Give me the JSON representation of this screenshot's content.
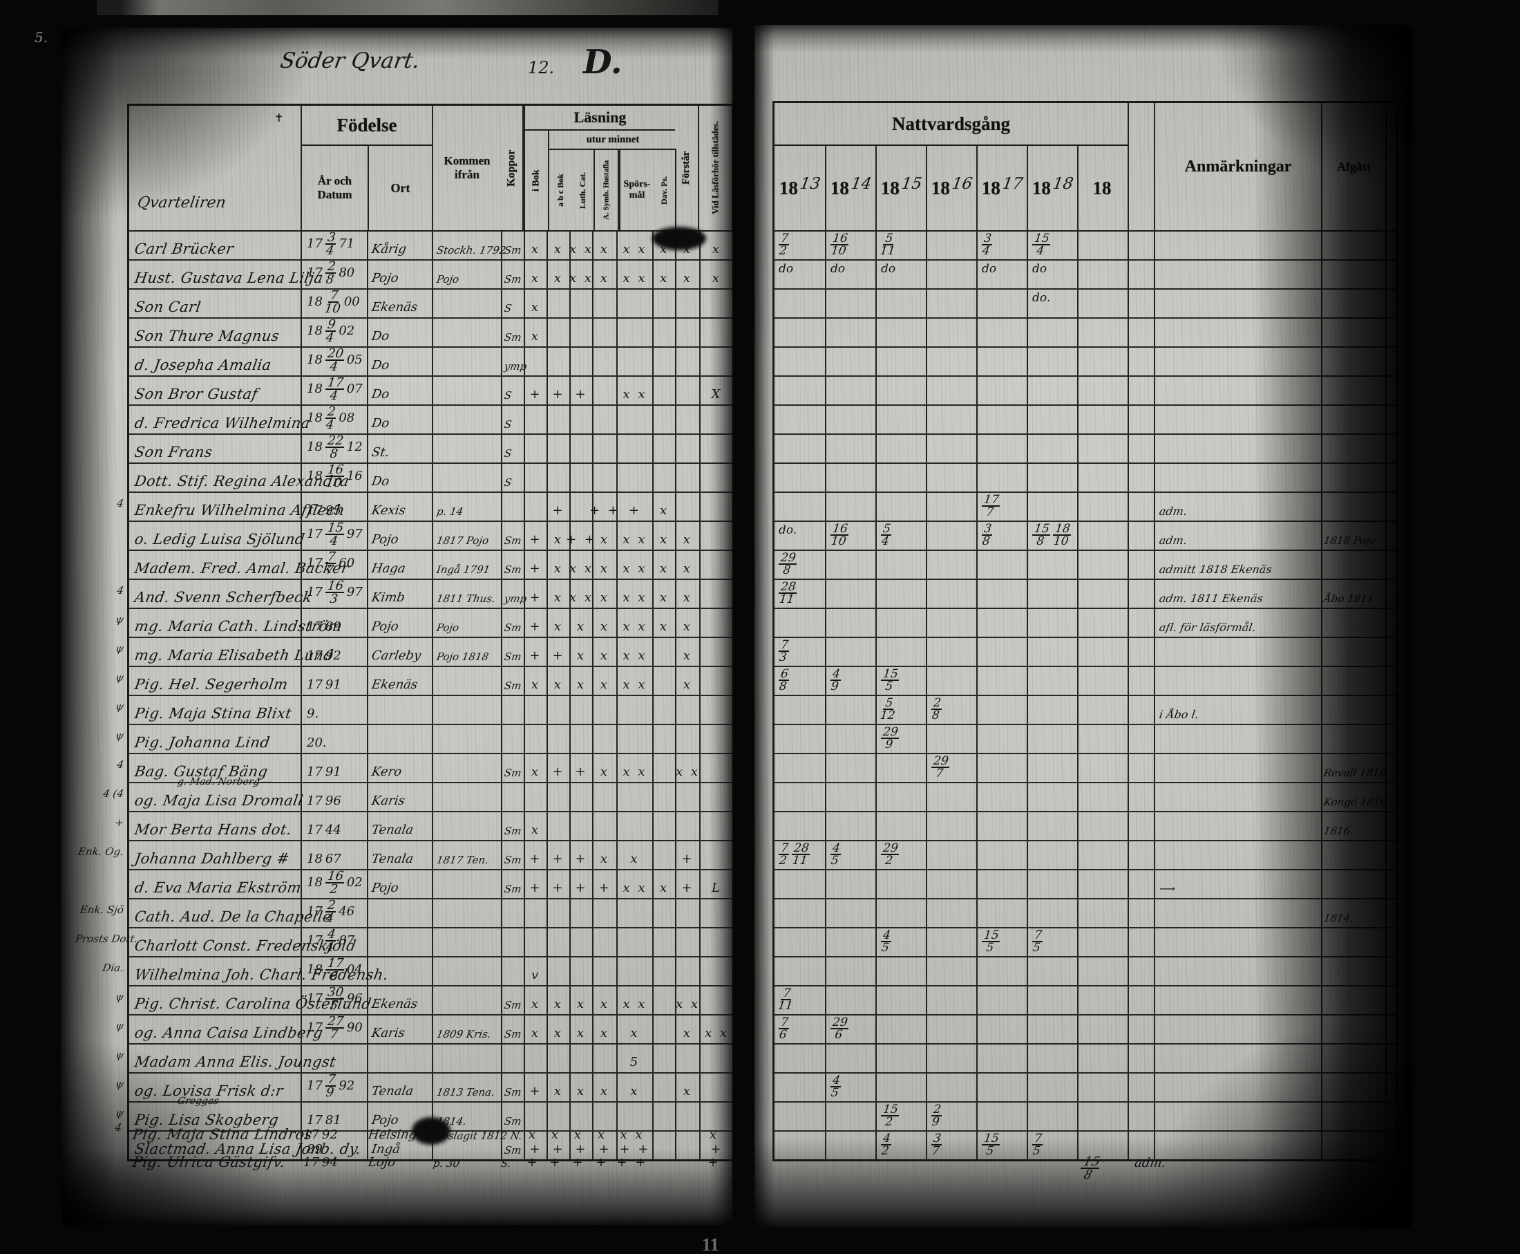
{
  "film": {
    "top_left_mark": "5.",
    "bottom_center_mark": "11"
  },
  "left_page": {
    "title_script": "Söder Qvart.",
    "title_number": "12.",
    "title_letter": "D.",
    "header_script": "Qvarteliren",
    "header_cross": "✝",
    "header": {
      "fodelse": "Födelse",
      "ar_och_datum": "År och Datum",
      "ort": "Ort",
      "kommen": "Kommen ifrån",
      "koppor": "Koppor",
      "lasning": "Läsning",
      "utur_minnet": "utur minnet",
      "i_bok": "i Bok",
      "abc_bok": "a b c Bok",
      "luth_cat": "Luth. Cat.",
      "a_symb": "A. Symb. Hustafla",
      "sporsmal": "Spörs- mål",
      "dav_ps": "Dav. Ps.",
      "forstar": "Förstår",
      "vid_lasforhor": "Vid Läsförhör tillstädes."
    },
    "rows": [
      {
        "margin": "",
        "name": "Carl Brücker",
        "name2": "",
        "born": "17 3/4 71",
        "ort": "Kårig",
        "kommen": "Stockh. 1792",
        "koppor": "Sm",
        "marks": [
          "x",
          "x",
          "x x",
          "x",
          "x x",
          "x",
          "x",
          "x"
        ]
      },
      {
        "margin": "",
        "name": "Hust. Gustava Lena Lilja",
        "name2": "",
        "born": "17 2/8 80",
        "ort": "Pojo",
        "kommen": "Pojo",
        "koppor": "Sm",
        "marks": [
          "x",
          "x",
          "x x",
          "x",
          "x x",
          "x",
          "x",
          "x"
        ]
      },
      {
        "margin": "",
        "name": "Son Carl",
        "name2": "",
        "born": "18 7/10 00",
        "ort": "Ekenäs",
        "kommen": "",
        "koppor": "S",
        "marks": [
          "x",
          "",
          "",
          "",
          "",
          "",
          "",
          ""
        ]
      },
      {
        "margin": "",
        "name": "Son Thure Magnus",
        "name2": "",
        "born": "18 9/4 02",
        "ort": "Do",
        "kommen": "",
        "koppor": "Sm",
        "marks": [
          "x",
          "",
          "",
          "",
          "",
          "",
          "",
          ""
        ]
      },
      {
        "margin": "",
        "name": "d. Josepha Amalia",
        "name2": "",
        "born": "18 20/4 05",
        "ort": "Do",
        "kommen": "",
        "koppor": "ymp",
        "marks": [
          "",
          "",
          "",
          "",
          "",
          "",
          "",
          ""
        ]
      },
      {
        "margin": "",
        "name": "Son Bror Gustaf",
        "name2": "",
        "born": "18 17/4 07",
        "ort": "Do",
        "kommen": "",
        "koppor": "S",
        "marks": [
          "+",
          "+",
          "+",
          "",
          "x x",
          "",
          "",
          "X"
        ]
      },
      {
        "margin": "",
        "name": "d. Fredrica Wilhelmina",
        "name2": "",
        "born": "18 2/4 08",
        "ort": "Do",
        "kommen": "",
        "koppor": "S",
        "marks": [
          "",
          "",
          "",
          "",
          "",
          "",
          "",
          ""
        ]
      },
      {
        "margin": "",
        "name": "Son Frans",
        "name2": "",
        "born": "18 22/8 12",
        "ort": "St.",
        "kommen": "",
        "koppor": "S",
        "marks": [
          "",
          "",
          "",
          "",
          "",
          "",
          "",
          ""
        ]
      },
      {
        "margin": "",
        "name": "Dott. Stif. Regina Alexandra",
        "name2": "",
        "born": "18 16/10 16",
        "ort": "Do",
        "kommen": "",
        "koppor": "S",
        "marks": [
          "",
          "",
          "",
          "",
          "",
          "",
          "",
          ""
        ]
      },
      {
        "margin": "4",
        "name": "Enkefru Wilhelmina Afflech",
        "name2": "",
        "born": "17 95",
        "ort": "Kexis",
        "kommen": "p. 14",
        "koppor": "",
        "marks": [
          "",
          "+",
          "",
          "+ +",
          "+",
          "x",
          "",
          ""
        ]
      },
      {
        "margin": "",
        "name": "o. Ledig Luisa Sjölund",
        "name2": "",
        "born": "17 15/4 97",
        "ort": "Pojo",
        "kommen": "1817 Pojo",
        "koppor": "Sm",
        "marks": [
          "+",
          "x",
          "+ +",
          "x",
          "x x",
          "x",
          "x",
          ""
        ]
      },
      {
        "margin": "",
        "name": "Madem. Fred. Amal. Backer",
        "name2": "",
        "born": "17 7/7 60",
        "ort": "Haga",
        "kommen": "Ingå 1791",
        "koppor": "Sm",
        "marks": [
          "+",
          "x",
          "x x",
          "x",
          "x x",
          "x",
          "x",
          ""
        ]
      },
      {
        "margin": "4",
        "name": "And. Svenn Scherfbeck",
        "name2": "",
        "born": "17 16/3 97",
        "ort": "Kimb",
        "kommen": "1811 Thus.",
        "koppor": "ymp",
        "marks": [
          "+",
          "x",
          "x x",
          "x",
          "x x",
          "x",
          "x",
          ""
        ]
      },
      {
        "margin": "ψ",
        "name": "mg. Maria Cath. Lindström",
        "name2": "",
        "born": "17 89",
        "ort": "Pojo",
        "kommen": "Pojo",
        "koppor": "Sm",
        "marks": [
          "+",
          "x",
          "x",
          "x",
          "x x",
          "x",
          "x",
          ""
        ]
      },
      {
        "margin": "ψ",
        "name": "mg. Maria Elisabeth Lund",
        "name2": "",
        "born": "17 92",
        "ort": "Carleby",
        "kommen": "Pojo 1818",
        "koppor": "Sm",
        "marks": [
          "+",
          "+",
          "x",
          "x",
          "x x",
          "",
          "x",
          ""
        ]
      },
      {
        "margin": "ψ",
        "name": "Pig. Hel. Segerholm",
        "name2": "",
        "born": "17 91",
        "ort": "Ekenäs",
        "kommen": "",
        "koppor": "Sm",
        "marks": [
          "x",
          "x",
          "x",
          "x",
          "x x",
          "",
          "x",
          ""
        ]
      },
      {
        "margin": "ψ",
        "name": "Pig. Maja Stina Blixt",
        "name2": "",
        "born": "9.",
        "ort": "",
        "kommen": "",
        "koppor": "",
        "marks": [
          "",
          "",
          "",
          "",
          "",
          "",
          "",
          ""
        ]
      },
      {
        "margin": "ψ",
        "name": "Pig. Johanna Lind",
        "name2": "",
        "born": "20.",
        "ort": "",
        "kommen": "",
        "koppor": "",
        "marks": [
          "",
          "",
          "",
          "",
          "",
          "",
          "",
          ""
        ]
      },
      {
        "margin": "4",
        "name": "Bag. Gustaf Bäng",
        "name2": "",
        "born": "17 91",
        "ort": "Kero",
        "kommen": "",
        "koppor": "Sm",
        "marks": [
          "x",
          "+",
          "+",
          "x",
          "x x",
          "",
          "x x",
          ""
        ]
      },
      {
        "margin": "4 (4",
        "name": "og. Maja Lisa Dromall",
        "name2": "g. Mad. Norberg —",
        "born": "17 96",
        "ort": "Karis",
        "kommen": "",
        "koppor": "",
        "marks": [
          "",
          "",
          "",
          "",
          "",
          "",
          "",
          ""
        ]
      },
      {
        "margin": "+",
        "name": "Mor Berta Hans dot.",
        "name2": "",
        "born": "17 44",
        "ort": "Tenala",
        "kommen": "",
        "koppor": "Sm",
        "marks": [
          "x",
          "",
          "",
          "",
          "",
          "",
          "",
          ""
        ]
      },
      {
        "margin": "Enk. Og.",
        "name": "Johanna Dahlberg #",
        "name2": "",
        "born": "18 67",
        "ort": "Tenala",
        "kommen": "1817 Ten.",
        "koppor": "Sm",
        "marks": [
          "+",
          "+",
          "+",
          "x",
          "x",
          "",
          "+",
          ""
        ]
      },
      {
        "margin": "",
        "name": "d. Eva Maria Ekström",
        "name2": "",
        "born": "18 16/2 02",
        "ort": "Pojo",
        "kommen": "",
        "koppor": "Sm",
        "marks": [
          "+",
          "+",
          "+",
          "+",
          "x x",
          "x",
          "+",
          "L"
        ]
      },
      {
        "margin": "Enk. Sjö",
        "name": "Cath. Aud. De la Chapelle",
        "name2": "",
        "born": "17 2/4 46",
        "ort": "",
        "kommen": "",
        "koppor": "",
        "marks": [
          "",
          "",
          "",
          "",
          "",
          "",
          "",
          ""
        ]
      },
      {
        "margin": "Prosts Dott.",
        "name": "Charlott Const. Fredenskjöld",
        "name2": "",
        "born": "17 4/4 87",
        "ort": "",
        "kommen": "",
        "koppor": "",
        "marks": [
          "",
          "",
          "",
          "",
          "",
          "",
          "",
          ""
        ]
      },
      {
        "margin": "Dia.",
        "name": "Wilhelmina Joh. Charl. Fredensh.",
        "name2": "",
        "born": "18 17/6 04",
        "ort": "",
        "kommen": "",
        "koppor": "",
        "marks": [
          "v",
          "",
          "",
          "",
          "",
          "",
          "",
          ""
        ]
      },
      {
        "margin": "ψ",
        "name": "Pig. Christ. Carolina Österlund",
        "name2": "",
        "born": "17 30/5 96",
        "ort": "Ekenäs",
        "kommen": "",
        "koppor": "Sm",
        "marks": [
          "x",
          "x",
          "x",
          "x",
          "x x",
          "",
          "x x",
          ""
        ]
      },
      {
        "margin": "ψ",
        "name": "og. Anna Caisa Lindberg",
        "name2": "",
        "born": "17 27/7 90",
        "ort": "Karis",
        "kommen": "1809 Kris.",
        "koppor": "Sm",
        "marks": [
          "x",
          "x",
          "x",
          "x",
          "x",
          "",
          "x",
          "x x"
        ]
      },
      {
        "margin": "ψ",
        "name": "Madam Anna Elis. Joungst",
        "name2": "",
        "born": "",
        "ort": "",
        "kommen": "",
        "koppor": "",
        "marks": [
          "",
          "",
          "",
          "",
          "5",
          "",
          "",
          ""
        ]
      },
      {
        "margin": "ψ",
        "name": "og. Lovisa Frisk d:r",
        "name2": "",
        "born": "17 7/9 92",
        "ort": "Tenala",
        "kommen": "1813 Tena.",
        "koppor": "Sm",
        "marks": [
          "+",
          "x",
          "x",
          "x",
          "x",
          "",
          "x",
          ""
        ]
      },
      {
        "margin": "ψ",
        "name": "Pig. Lisa Skogberg",
        "name2": "Greggas",
        "born": "17 81",
        "ort": "Pojo",
        "kommen": "1814.",
        "koppor": "Sm",
        "marks": [
          "",
          "",
          "",
          "",
          "",
          "",
          "",
          ""
        ]
      },
      {
        "margin": "",
        "name": "Slactmad. Anna Lisa Jonb. dy.",
        "name2": "",
        "born": "89",
        "ort": "Ingå",
        "kommen": "",
        "koppor": "Sm",
        "marks": [
          "+",
          "+",
          "+",
          "+",
          "+ +",
          "",
          "",
          "+"
        ]
      }
    ],
    "below_rows": [
      {
        "margin": "4",
        "name": "Pig. Maja Stina Lindros",
        "name2": "",
        "born": "17 92",
        "ort": "Helsing",
        "kommen": "Hoslagit 1812 N.",
        "koppor": "",
        "marks": [
          "x",
          "x",
          "x",
          "x",
          "x x",
          "",
          "",
          "x"
        ]
      },
      {
        "margin": "",
        "name": "Pig. Ulrica Gästgifv.",
        "name2": "",
        "born": "17 94",
        "ort": "Lojo",
        "kommen": "p. 30",
        "koppor": "S.",
        "marks": [
          "+",
          "+",
          "+",
          "+",
          "+ +",
          "",
          "",
          "+"
        ]
      }
    ]
  },
  "right_page": {
    "header": {
      "nattvardsgang": "Nattvardsgång",
      "year_prefix": "18",
      "years": [
        "13",
        "14",
        "15",
        "16",
        "17",
        "18",
        ""
      ],
      "anmarkningar": "Anmärkningar",
      "afgatt": "Afgått"
    },
    "rows": [
      {
        "cells": [
          "7/2",
          "16/10",
          "5/11",
          "",
          "3/4",
          "15/4",
          ""
        ],
        "anm": "",
        "afgatt": ""
      },
      {
        "cells": [
          "do",
          "do",
          "do",
          "",
          "do",
          "do",
          ""
        ],
        "anm": "",
        "afgatt": ""
      },
      {
        "cells": [
          "",
          "",
          "",
          "",
          "",
          "do.",
          ""
        ],
        "anm": "",
        "afgatt": ""
      },
      {
        "cells": [
          "",
          "",
          "",
          "",
          "",
          "",
          ""
        ],
        "anm": "",
        "afgatt": ""
      },
      {
        "cells": [
          "",
          "",
          "",
          "",
          "",
          "",
          ""
        ],
        "anm": "",
        "afgatt": ""
      },
      {
        "cells": [
          "",
          "",
          "",
          "",
          "",
          "",
          ""
        ],
        "anm": "",
        "afgatt": ""
      },
      {
        "cells": [
          "",
          "",
          "",
          "",
          "",
          "",
          ""
        ],
        "anm": "",
        "afgatt": ""
      },
      {
        "cells": [
          "",
          "",
          "",
          "",
          "",
          "",
          ""
        ],
        "anm": "",
        "afgatt": ""
      },
      {
        "cells": [
          "",
          "",
          "",
          "",
          "",
          "",
          ""
        ],
        "anm": "",
        "afgatt": ""
      },
      {
        "cells": [
          "",
          "",
          "",
          "",
          "17/7",
          "",
          ""
        ],
        "anm": "adm.",
        "afgatt": ""
      },
      {
        "cells": [
          "do.",
          "16/10",
          "5/4",
          "",
          "3/8",
          "15/8 18/10",
          ""
        ],
        "anm": "adm.",
        "afgatt": "1818 Pojo"
      },
      {
        "cells": [
          "29/8",
          "",
          "",
          "",
          "",
          "",
          ""
        ],
        "anm": "admitt 1818 Ekenäs",
        "afgatt": ""
      },
      {
        "cells": [
          "28/11",
          "",
          "",
          "",
          "",
          "",
          ""
        ],
        "anm": "adm. 1811 Ekenäs",
        "afgatt": "Åbo 1811"
      },
      {
        "cells": [
          "",
          "",
          "",
          "",
          "",
          "",
          ""
        ],
        "anm": "afl. för läsförmål.",
        "afgatt": ""
      },
      {
        "cells": [
          "7/3",
          "",
          "",
          "",
          "",
          "",
          ""
        ],
        "anm": "",
        "afgatt": ""
      },
      {
        "cells": [
          "6/8",
          "4/9",
          "15/5",
          "",
          "",
          "",
          ""
        ],
        "anm": "",
        "afgatt": ""
      },
      {
        "cells": [
          "",
          "",
          "5/12",
          "2/8",
          "",
          "",
          ""
        ],
        "anm": "i Åbo l.",
        "afgatt": ""
      },
      {
        "cells": [
          "",
          "",
          "29/9",
          "",
          "",
          "",
          ""
        ],
        "anm": "",
        "afgatt": ""
      },
      {
        "cells": [
          "",
          "",
          "",
          "29/7",
          "",
          "",
          ""
        ],
        "anm": "",
        "afgatt": "Revall 1816"
      },
      {
        "cells": [
          "",
          "",
          "",
          "",
          "",
          "",
          ""
        ],
        "anm": "",
        "afgatt": "Kongö 1816"
      },
      {
        "cells": [
          "",
          "",
          "",
          "",
          "",
          "",
          ""
        ],
        "anm": "",
        "afgatt": "1816."
      },
      {
        "cells": [
          "7/2 28/11",
          "4/5",
          "29/2",
          "",
          "",
          "",
          ""
        ],
        "anm": "",
        "afgatt": ""
      },
      {
        "cells": [
          "",
          "",
          "",
          "",
          "",
          "",
          ""
        ],
        "anm": "⟶",
        "afgatt": ""
      },
      {
        "cells": [
          "",
          "",
          "",
          "",
          "",
          "",
          ""
        ],
        "anm": "",
        "afgatt": "1814."
      },
      {
        "cells": [
          "",
          "",
          "4/5",
          "",
          "15/5",
          "7/5",
          ""
        ],
        "anm": "",
        "afgatt": ""
      },
      {
        "cells": [
          "",
          "",
          "",
          "",
          "",
          "",
          ""
        ],
        "anm": "",
        "afgatt": ""
      },
      {
        "cells": [
          "7/11",
          "",
          "",
          "",
          "",
          "",
          ""
        ],
        "anm": "",
        "afgatt": ""
      },
      {
        "cells": [
          "7/6",
          "29/6",
          "",
          "",
          "",
          "",
          ""
        ],
        "anm": "",
        "afgatt": ""
      },
      {
        "cells": [
          "",
          "",
          "",
          "",
          "",
          "",
          ""
        ],
        "anm": "",
        "afgatt": ""
      },
      {
        "cells": [
          "",
          "4/5",
          "",
          "",
          "",
          "",
          ""
        ],
        "anm": "",
        "afgatt": ""
      },
      {
        "cells": [
          "",
          "",
          "15/2",
          "2/9",
          "",
          "",
          ""
        ],
        "anm": "",
        "afgatt": ""
      },
      {
        "cells": [
          "",
          "",
          "4/2",
          "3/7",
          "15/5",
          "7/5",
          ""
        ],
        "anm": "",
        "afgatt": ""
      }
    ],
    "below_notes": [
      "15/8",
      "adm."
    ]
  }
}
